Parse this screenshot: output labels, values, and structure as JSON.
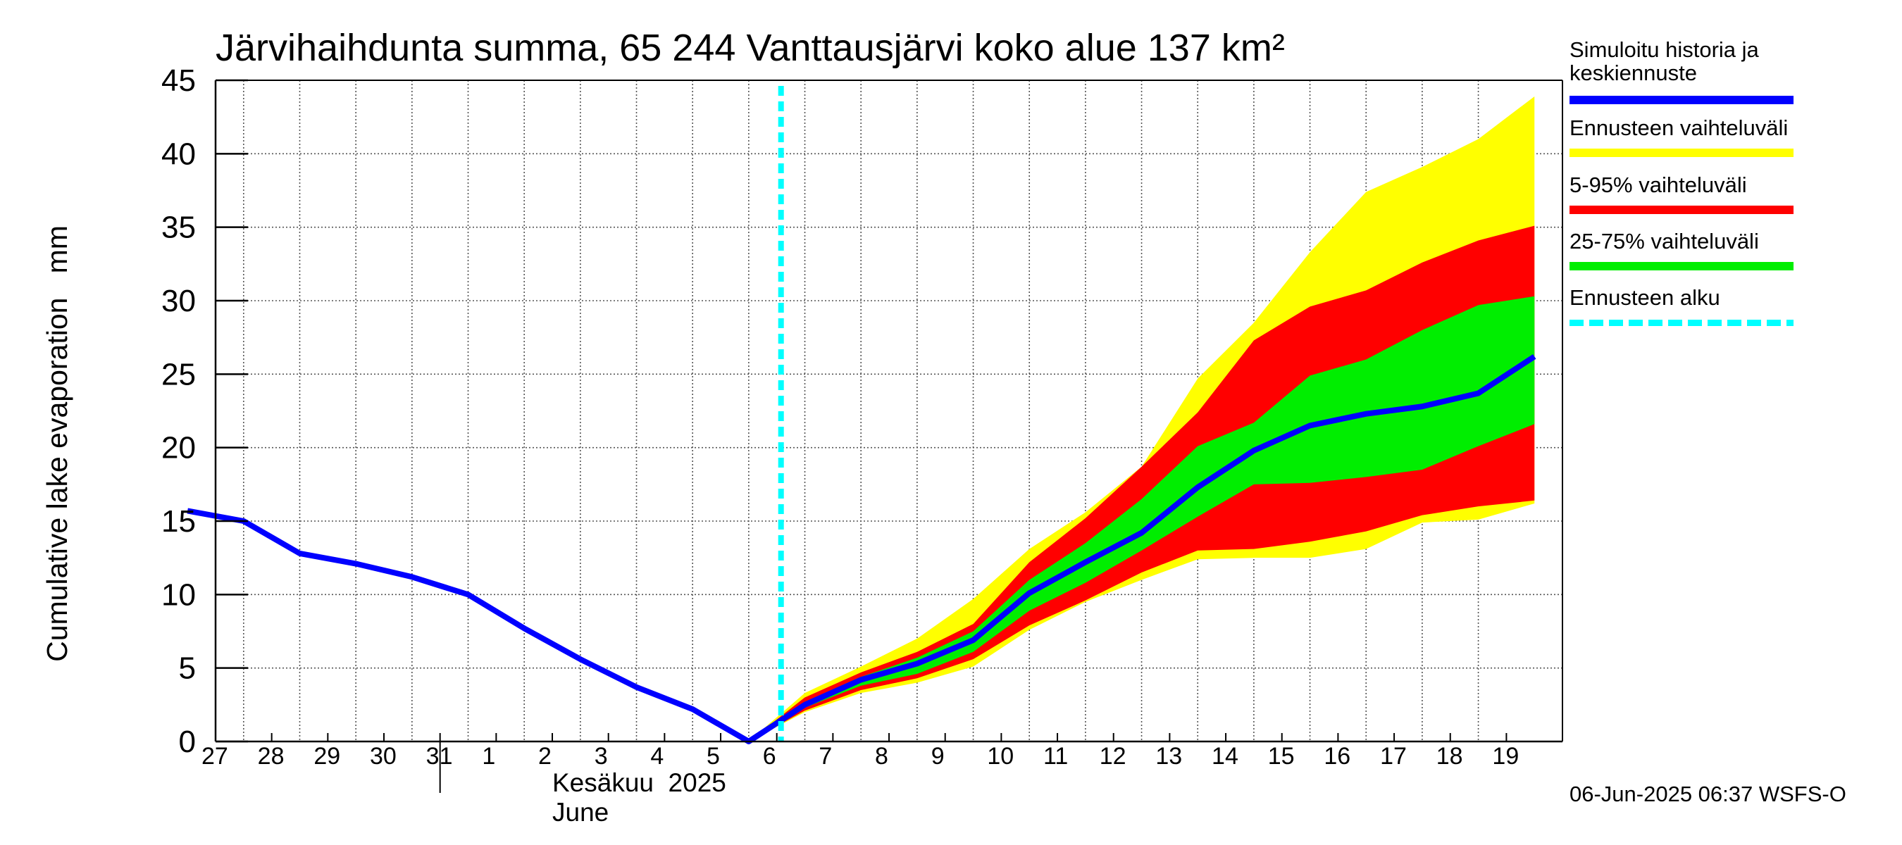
{
  "chart_data": {
    "type": "area",
    "title": "Järvihaihdunta summa, 65 244 Vanttausjärvi koko alue 137 km²",
    "ylabel": "Cumulative lake evaporation   mm",
    "ylim": [
      0,
      45
    ],
    "yticks": [
      0,
      5,
      10,
      15,
      20,
      25,
      30,
      35,
      40,
      45
    ],
    "x_tick_labels": [
      "27",
      "28",
      "29",
      "30",
      "31",
      "1",
      "2",
      "3",
      "4",
      "5",
      "6",
      "7",
      "8",
      "9",
      "10",
      "11",
      "12",
      "13",
      "14",
      "15",
      "16",
      "17",
      "18",
      "19"
    ],
    "month_label_fi": "Kesäkuu  2025",
    "month_label_en": "June",
    "forecast_start": "6",
    "grid": true,
    "legend_position": "right",
    "x_days": [
      0,
      1,
      2,
      3,
      4,
      5,
      6,
      7,
      8,
      9,
      10,
      11,
      12,
      13,
      14,
      15,
      16,
      17,
      18,
      19,
      20,
      21,
      22,
      23,
      24
    ],
    "series": [
      {
        "name": "Simuloitu historia ja keskiennuste",
        "color": "#0000ff",
        "x": [
          0,
          1,
          2,
          3,
          4,
          5,
          6,
          7,
          8,
          9,
          10,
          11,
          12,
          13,
          14,
          15,
          16,
          17,
          18,
          19,
          20,
          21,
          22,
          23,
          24
        ],
        "values": [
          15.7,
          15.0,
          12.8,
          12.1,
          11.2,
          10.0,
          7.7,
          5.6,
          3.7,
          2.2,
          0.0,
          2.5,
          4.2,
          5.3,
          6.9,
          10.1,
          12.2,
          14.2,
          17.3,
          19.8,
          21.5,
          22.3,
          22.8,
          23.7,
          26.2
        ]
      },
      {
        "name": "Ennusteen vaihteluväli",
        "color": "#ffff00",
        "x": [
          10,
          11,
          12,
          13,
          14,
          15,
          16,
          17,
          18,
          19,
          20,
          21,
          22,
          23,
          24
        ],
        "upper": [
          0.0,
          3.3,
          5.1,
          7.0,
          9.7,
          13.1,
          15.6,
          18.7,
          24.7,
          28.5,
          33.3,
          37.4,
          39.1,
          41.0,
          43.9
        ],
        "lower": [
          0.0,
          2.0,
          3.3,
          4.0,
          5.1,
          7.6,
          9.5,
          11.0,
          12.4,
          12.5,
          12.5,
          13.1,
          14.9,
          15.1,
          16.2
        ]
      },
      {
        "name": "5-95% vaihteluväli",
        "color": "#ff0000",
        "x": [
          10,
          11,
          12,
          13,
          14,
          15,
          16,
          17,
          18,
          19,
          20,
          21,
          22,
          23,
          24
        ],
        "upper": [
          0.0,
          3.0,
          4.7,
          6.1,
          8.0,
          12.2,
          15.2,
          18.7,
          22.4,
          27.3,
          29.6,
          30.7,
          32.6,
          34.1,
          35.1
        ],
        "lower": [
          0.0,
          2.1,
          3.5,
          4.3,
          5.6,
          7.9,
          9.6,
          11.5,
          13.0,
          13.1,
          13.6,
          14.3,
          15.4,
          16.0,
          16.4
        ]
      },
      {
        "name": "25-75% vaihteluväli",
        "color": "#00ee00",
        "x": [
          10,
          11,
          12,
          13,
          14,
          15,
          16,
          17,
          18,
          19,
          20,
          21,
          22,
          23,
          24
        ],
        "upper": [
          0.0,
          2.7,
          4.4,
          5.7,
          7.5,
          11.0,
          13.5,
          16.5,
          20.1,
          21.7,
          24.9,
          26.0,
          28.0,
          29.7,
          30.3
        ],
        "lower": [
          0.0,
          2.3,
          3.8,
          4.6,
          6.1,
          8.9,
          10.8,
          13.0,
          15.3,
          17.5,
          17.6,
          18.0,
          18.5,
          20.1,
          21.6
        ]
      }
    ],
    "forecast_marker": {
      "name": "Ennusteen alku",
      "color": "#00ffff"
    }
  },
  "legend": [
    {
      "label": "Simuloitu historia ja\nkeskiennuste",
      "color": "#0000ff"
    },
    {
      "label": "Ennusteen vaihteluväli",
      "color": "#ffff00"
    },
    {
      "label": "5-95% vaihteluväli",
      "color": "#ff0000"
    },
    {
      "label": "25-75% vaihteluväli",
      "color": "#00ee00"
    },
    {
      "label": "Ennusteen alku",
      "color": "#00ffff"
    }
  ],
  "footer": {
    "timestamp": "06-Jun-2025 06:37 WSFS-O"
  }
}
